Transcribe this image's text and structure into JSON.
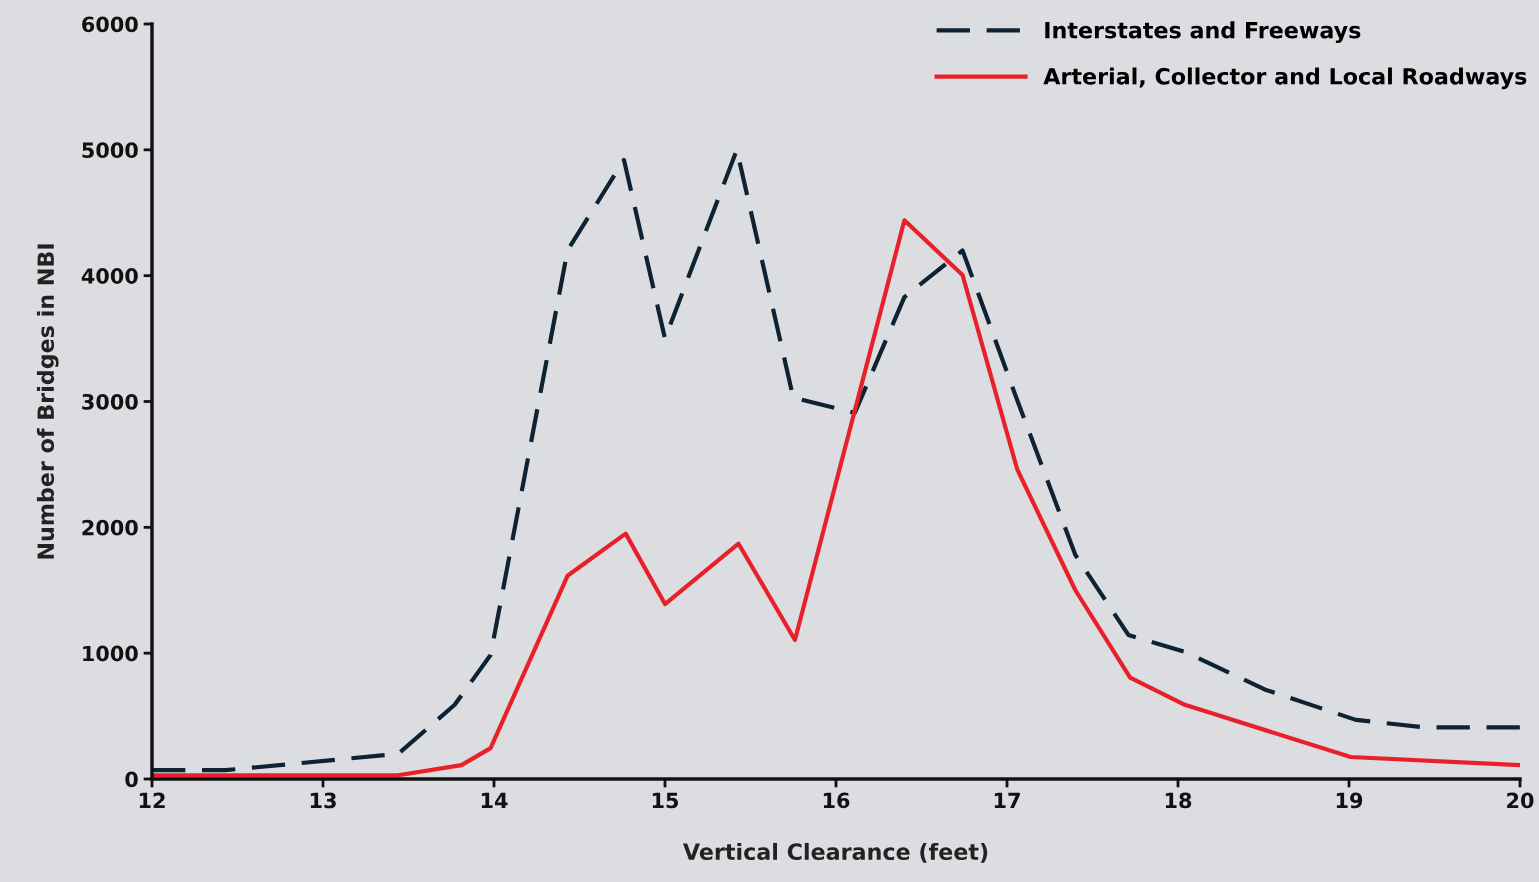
{
  "chart_data": {
    "type": "line",
    "xlabel": "Vertical Clearance (feet)",
    "ylabel": "Number of Bridges in NBI",
    "xlim": [
      12,
      20
    ],
    "xticks": [
      12,
      13,
      14,
      15,
      16,
      17,
      18,
      19,
      20
    ],
    "ylim": [
      0,
      6000
    ],
    "yticks": [
      0,
      1000,
      2000,
      3000,
      4000,
      5000,
      6000
    ],
    "grid": false,
    "legend": "top right",
    "marker": "none",
    "series": [
      {
        "name": "Interstates and Freeways",
        "color": "#0d2233",
        "line_style": "dashed",
        "x": [
          12,
          12.43,
          13.44,
          13.77,
          13.98,
          14.43,
          14.76,
          15.0,
          15.42,
          15.75,
          16.11,
          16.4,
          16.74,
          17.06,
          17.4,
          17.71,
          18.04,
          18.51,
          19.04,
          19.44,
          20
        ],
        "values": [
          70,
          70,
          200,
          590,
          985,
          4200,
          4920,
          3500,
          5000,
          3030,
          2910,
          3830,
          4200,
          3010,
          1780,
          1145,
          1010,
          710,
          470,
          410,
          410
        ]
      },
      {
        "name": "Arterial, Collector and Local Roadways",
        "color": "#e8202a",
        "line_style": "solid",
        "x": [
          12,
          13.44,
          13.81,
          13.98,
          14.43,
          14.77,
          15.0,
          15.43,
          15.76,
          16.4,
          16.74,
          17.06,
          17.4,
          17.72,
          18.04,
          19.01,
          20
        ],
        "values": [
          30,
          30,
          110,
          245,
          1615,
          1950,
          1390,
          1870,
          1105,
          4440,
          4005,
          2460,
          1500,
          805,
          590,
          175,
          110
        ]
      }
    ]
  }
}
